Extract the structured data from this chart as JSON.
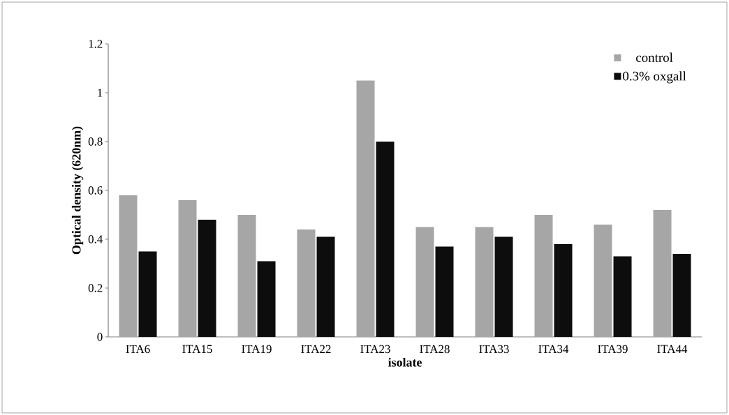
{
  "chart_data": {
    "type": "bar",
    "xlabel": "isolate",
    "ylabel": "Optical density (620nm)",
    "categories": [
      "ITA6",
      "ITA15",
      "ITA19",
      "ITA22",
      "ITA23",
      "ITA28",
      "ITA33",
      "ITA34",
      "ITA39",
      "ITA44"
    ],
    "series": [
      {
        "name": "control",
        "color": "#a6a6a6",
        "values": [
          0.58,
          0.56,
          0.5,
          0.44,
          1.05,
          0.45,
          0.45,
          0.5,
          0.46,
          0.52
        ]
      },
      {
        "name": "0.3% oxgall",
        "color": "#0d0d0d",
        "values": [
          0.35,
          0.48,
          0.31,
          0.41,
          0.8,
          0.37,
          0.41,
          0.38,
          0.33,
          0.34
        ]
      }
    ],
    "ylim": [
      0,
      1.2
    ],
    "yticks": [
      0,
      0.2,
      0.4,
      0.6,
      0.8,
      1,
      1.2
    ],
    "grid": false,
    "legend": "top right"
  }
}
